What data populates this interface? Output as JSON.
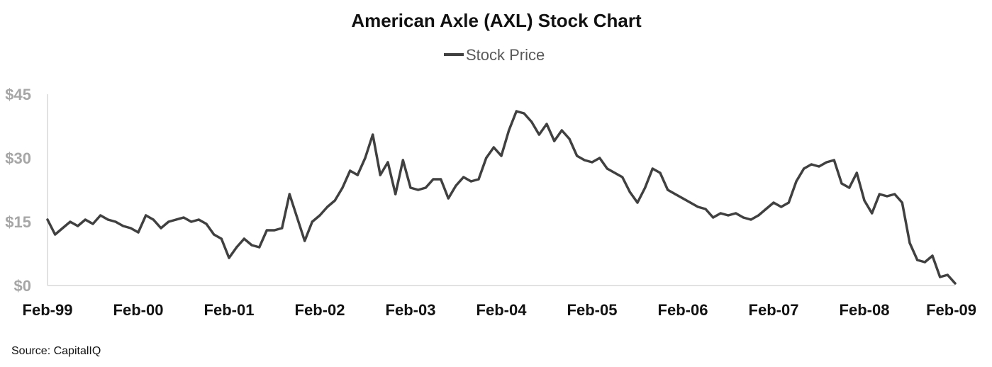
{
  "chart_data": {
    "type": "line",
    "title": "American Axle (AXL) Stock Chart",
    "legend": {
      "position": "top-center",
      "entries": [
        "Stock Price"
      ]
    },
    "series": [
      {
        "name": "Stock Price",
        "color": "#404040",
        "points": [
          [
            "Feb-99",
            15.5
          ],
          [
            "Mar-99",
            12.0
          ],
          [
            "Apr-99",
            13.5
          ],
          [
            "May-99",
            15.0
          ],
          [
            "Jun-99",
            14.0
          ],
          [
            "Jul-99",
            15.5
          ],
          [
            "Aug-99",
            14.5
          ],
          [
            "Sep-99",
            16.5
          ],
          [
            "Oct-99",
            15.5
          ],
          [
            "Nov-99",
            15.0
          ],
          [
            "Dec-99",
            14.0
          ],
          [
            "Jan-00",
            13.5
          ],
          [
            "Feb-00",
            12.5
          ],
          [
            "Mar-00",
            16.5
          ],
          [
            "Apr-00",
            15.5
          ],
          [
            "May-00",
            13.5
          ],
          [
            "Jun-00",
            15.0
          ],
          [
            "Jul-00",
            15.5
          ],
          [
            "Aug-00",
            16.0
          ],
          [
            "Sep-00",
            15.0
          ],
          [
            "Oct-00",
            15.5
          ],
          [
            "Nov-00",
            14.5
          ],
          [
            "Dec-00",
            12.0
          ],
          [
            "Jan-01",
            11.0
          ],
          [
            "Feb-01",
            6.5
          ],
          [
            "Mar-01",
            9.0
          ],
          [
            "Apr-01",
            11.0
          ],
          [
            "May-01",
            9.5
          ],
          [
            "Jun-01",
            9.0
          ],
          [
            "Jul-01",
            13.0
          ],
          [
            "Aug-01",
            13.0
          ],
          [
            "Sep-01",
            13.5
          ],
          [
            "Oct-01",
            21.5
          ],
          [
            "Nov-01",
            16.0
          ],
          [
            "Dec-01",
            10.5
          ],
          [
            "Jan-02",
            15.0
          ],
          [
            "Feb-02",
            16.5
          ],
          [
            "Mar-02",
            18.5
          ],
          [
            "Apr-02",
            20.0
          ],
          [
            "May-02",
            23.0
          ],
          [
            "Jun-02",
            27.0
          ],
          [
            "Jul-02",
            26.0
          ],
          [
            "Aug-02",
            30.0
          ],
          [
            "Sep-02",
            35.5
          ],
          [
            "Oct-02",
            26.0
          ],
          [
            "Nov-02",
            29.0
          ],
          [
            "Dec-02",
            21.5
          ],
          [
            "Jan-03",
            29.5
          ],
          [
            "Feb-03",
            23.0
          ],
          [
            "Mar-03",
            22.5
          ],
          [
            "Apr-03",
            23.0
          ],
          [
            "May-03",
            25.0
          ],
          [
            "Jun-03",
            25.0
          ],
          [
            "Jul-03",
            20.5
          ],
          [
            "Aug-03",
            23.5
          ],
          [
            "Sep-03",
            25.5
          ],
          [
            "Oct-03",
            24.5
          ],
          [
            "Nov-03",
            25.0
          ],
          [
            "Dec-03",
            30.0
          ],
          [
            "Jan-04",
            32.5
          ],
          [
            "Feb-04",
            30.5
          ],
          [
            "Mar-04",
            36.5
          ],
          [
            "Apr-04",
            41.0
          ],
          [
            "May-04",
            40.5
          ],
          [
            "Jun-04",
            38.5
          ],
          [
            "Jul-04",
            35.5
          ],
          [
            "Aug-04",
            38.0
          ],
          [
            "Sep-04",
            34.0
          ],
          [
            "Oct-04",
            36.5
          ],
          [
            "Nov-04",
            34.5
          ],
          [
            "Dec-04",
            30.5
          ],
          [
            "Jan-05",
            29.5
          ],
          [
            "Feb-05",
            29.0
          ],
          [
            "Mar-05",
            30.0
          ],
          [
            "Apr-05",
            27.5
          ],
          [
            "May-05",
            26.5
          ],
          [
            "Jun-05",
            25.5
          ],
          [
            "Jul-05",
            22.0
          ],
          [
            "Aug-05",
            19.5
          ],
          [
            "Sep-05",
            23.0
          ],
          [
            "Oct-05",
            27.5
          ],
          [
            "Nov-05",
            26.5
          ],
          [
            "Dec-05",
            22.5
          ],
          [
            "Jan-06",
            21.5
          ],
          [
            "Feb-06",
            20.5
          ],
          [
            "Mar-06",
            19.5
          ],
          [
            "Apr-06",
            18.5
          ],
          [
            "May-06",
            18.0
          ],
          [
            "Jun-06",
            16.0
          ],
          [
            "Jul-06",
            17.0
          ],
          [
            "Aug-06",
            16.5
          ],
          [
            "Sep-06",
            17.0
          ],
          [
            "Oct-06",
            16.0
          ],
          [
            "Nov-06",
            15.5
          ],
          [
            "Dec-06",
            16.5
          ],
          [
            "Jan-07",
            18.0
          ],
          [
            "Feb-07",
            19.5
          ],
          [
            "Mar-07",
            18.5
          ],
          [
            "Apr-07",
            19.5
          ],
          [
            "May-07",
            24.5
          ],
          [
            "Jun-07",
            27.5
          ],
          [
            "Jul-07",
            28.5
          ],
          [
            "Aug-07",
            28.0
          ],
          [
            "Sep-07",
            29.0
          ],
          [
            "Oct-07",
            29.5
          ],
          [
            "Nov-07",
            24.0
          ],
          [
            "Dec-07",
            23.0
          ],
          [
            "Jan-08",
            26.5
          ],
          [
            "Feb-08",
            20.0
          ],
          [
            "Mar-08",
            17.0
          ],
          [
            "Apr-08",
            21.5
          ],
          [
            "May-08",
            21.0
          ],
          [
            "Jun-08",
            21.5
          ],
          [
            "Jul-08",
            19.5
          ],
          [
            "Aug-08",
            10.0
          ],
          [
            "Sep-08",
            6.0
          ],
          [
            "Oct-08",
            5.5
          ],
          [
            "Nov-08",
            7.0
          ],
          [
            "Dec-08",
            2.0
          ],
          [
            "Jan-09",
            2.5
          ],
          [
            "Feb-09",
            0.5
          ]
        ]
      }
    ],
    "x_axis": {
      "tick_labels": [
        "Feb-99",
        "Feb-00",
        "Feb-01",
        "Feb-02",
        "Feb-03",
        "Feb-04",
        "Feb-05",
        "Feb-06",
        "Feb-07",
        "Feb-08",
        "Feb-09"
      ]
    },
    "y_axis": {
      "range": [
        0,
        45
      ],
      "tick_values": [
        0,
        15,
        30,
        45
      ],
      "tick_labels": [
        "$0",
        "$15",
        "$30",
        "$45"
      ]
    },
    "grid": false,
    "source_note": "Source: CapitalIQ"
  }
}
